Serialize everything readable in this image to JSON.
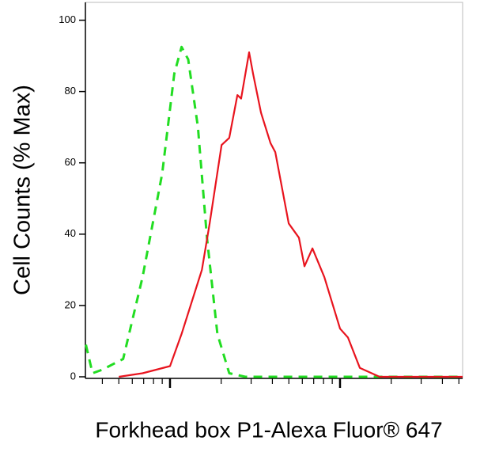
{
  "chart_data": {
    "type": "line",
    "y_label": "Cell Counts (% Max)",
    "x_label": "Forkhead box P1-Alexa Fluor® 647",
    "xscale": "log",
    "xlim": [
      31.8,
      5260
    ],
    "xticks": [
      100,
      1000
    ],
    "xminorticks": [
      40,
      50,
      60,
      70,
      80,
      90,
      200,
      300,
      400,
      500,
      600,
      700,
      800,
      900,
      2000,
      3000,
      4000,
      5000
    ],
    "ylim": [
      0,
      105
    ],
    "yticks": [
      0,
      20,
      40,
      60,
      80,
      100
    ],
    "series": [
      {
        "color": "#22dd22",
        "dash": true,
        "x": [
          32,
          35,
          40,
          53,
          69,
          90,
          106,
          117,
          128,
          146,
          165,
          190,
          223,
          277,
          5260
        ],
        "values": [
          9,
          1,
          2,
          5,
          28,
          57,
          85,
          92.5,
          89,
          70,
          39,
          12,
          1,
          0,
          0
        ]
      },
      {
        "color": "#e8141e",
        "dash": false,
        "x": [
          50,
          69,
          100,
          117,
          154,
          171,
          201,
          223,
          249,
          262,
          292,
          308,
          343,
          390,
          416,
          499,
          573,
          618,
          688,
          808,
          1000,
          1113,
          1307,
          1709,
          5260
        ],
        "values": [
          0,
          1,
          3,
          12,
          30,
          43,
          65,
          67,
          79,
          78,
          91,
          85,
          74,
          65.5,
          63,
          43,
          39,
          31,
          36,
          28,
          13.5,
          11,
          2.5,
          0,
          0
        ]
      }
    ]
  }
}
